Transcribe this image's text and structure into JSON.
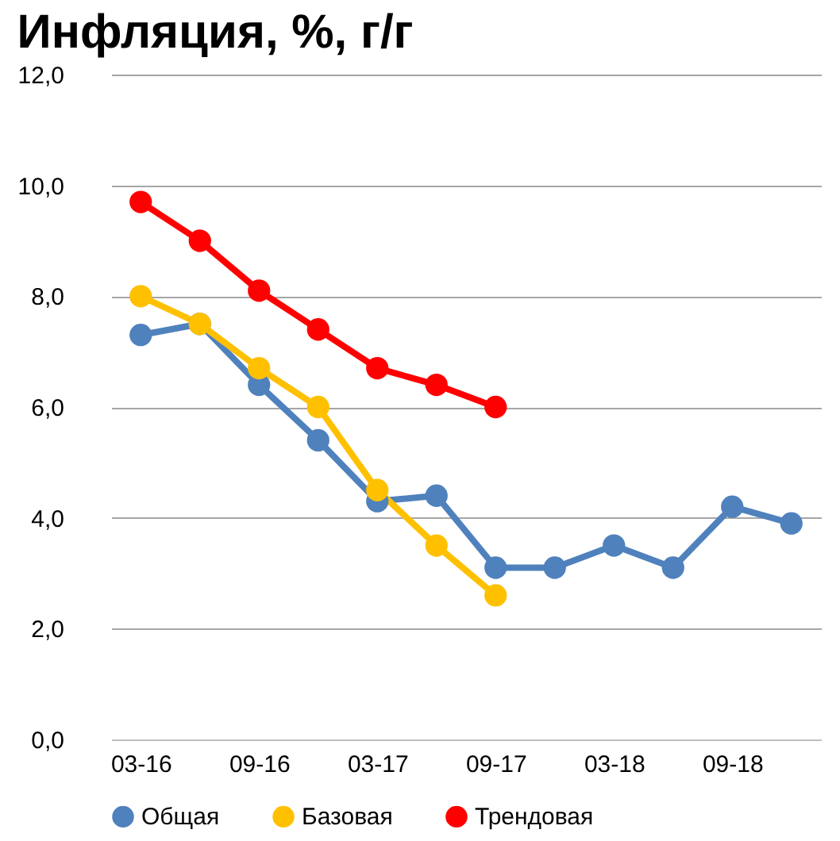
{
  "chart_data": {
    "type": "line",
    "title": "Инфляция, %, г/г",
    "categories": [
      "03-16",
      null,
      "09-16",
      null,
      "03-17",
      null,
      "09-17",
      null,
      "03-18",
      null,
      "09-18",
      null
    ],
    "series": [
      {
        "name": "Общая",
        "color": "#4f81bd",
        "values": [
          7.3,
          7.5,
          6.4,
          5.4,
          4.3,
          4.4,
          3.1,
          3.1,
          3.5,
          3.1,
          4.2,
          3.9
        ]
      },
      {
        "name": "Базовая",
        "color": "#ffc000",
        "values": [
          8.0,
          7.5,
          6.7,
          6.0,
          4.5,
          3.5,
          2.6,
          null,
          null,
          null,
          null,
          null
        ]
      },
      {
        "name": "Трендовая",
        "color": "#ff0000",
        "values": [
          9.7,
          9.0,
          8.1,
          7.4,
          6.7,
          6.4,
          6.0,
          null,
          null,
          null,
          null,
          null
        ]
      }
    ],
    "ylim": [
      0,
      12
    ],
    "yticks": [
      {
        "value": 0,
        "label": "0,0"
      },
      {
        "value": 2,
        "label": "2,0"
      },
      {
        "value": 4,
        "label": "4,0"
      },
      {
        "value": 6,
        "label": "6,0"
      },
      {
        "value": 8,
        "label": "8,0"
      },
      {
        "value": 10,
        "label": "10,0"
      },
      {
        "value": 12,
        "label": "12,0"
      }
    ],
    "grid": "y",
    "legend": "bottom",
    "marker": "circle",
    "line_style": "solid"
  }
}
